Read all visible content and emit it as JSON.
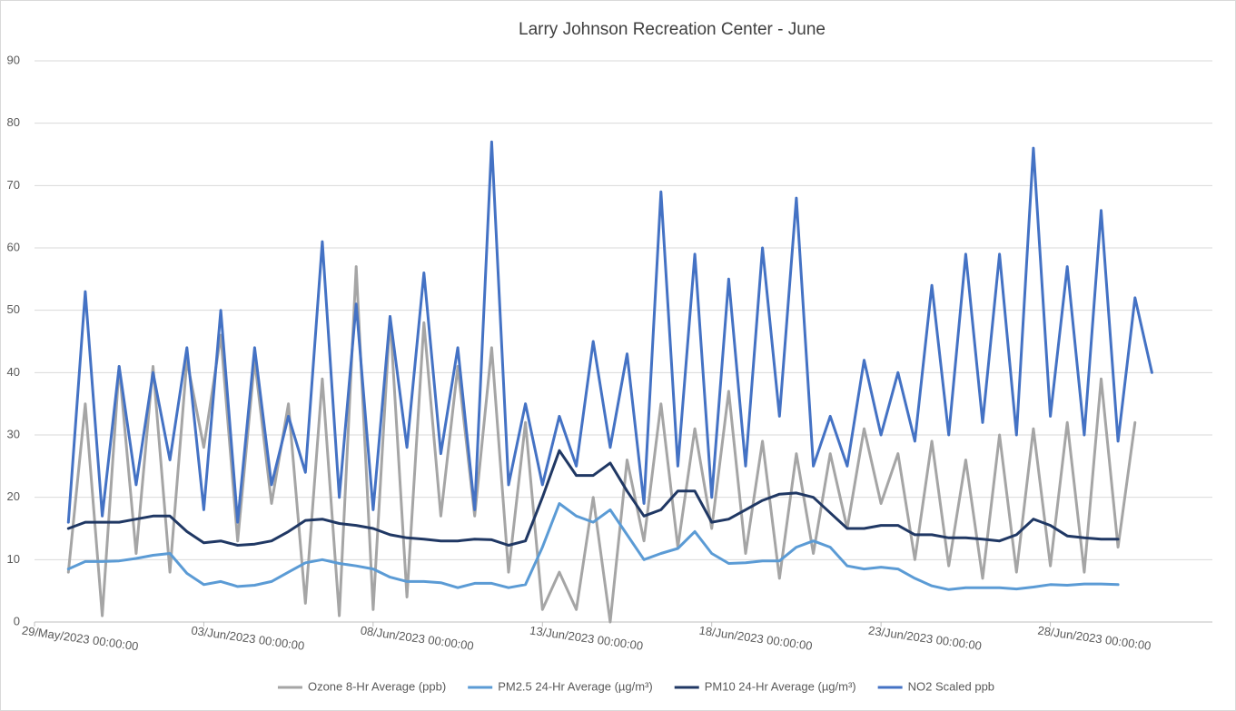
{
  "chart_data": {
    "type": "line",
    "title": "Larry Johnson Recreation Center - June",
    "x": [
      "30/May/2023 00:00:00",
      "30/May/2023 12:00:00",
      "31/May/2023 00:00:00",
      "31/May/2023 12:00:00",
      "01/Jun/2023 00:00:00",
      "01/Jun/2023 12:00:00",
      "02/Jun/2023 00:00:00",
      "02/Jun/2023 12:00:00",
      "03/Jun/2023 00:00:00",
      "03/Jun/2023 12:00:00",
      "04/Jun/2023 00:00:00",
      "04/Jun/2023 12:00:00",
      "05/Jun/2023 00:00:00",
      "05/Jun/2023 12:00:00",
      "06/Jun/2023 00:00:00",
      "06/Jun/2023 12:00:00",
      "07/Jun/2023 00:00:00",
      "07/Jun/2023 12:00:00",
      "08/Jun/2023 00:00:00",
      "08/Jun/2023 12:00:00",
      "09/Jun/2023 00:00:00",
      "09/Jun/2023 12:00:00",
      "10/Jun/2023 00:00:00",
      "10/Jun/2023 12:00:00",
      "11/Jun/2023 00:00:00",
      "11/Jun/2023 12:00:00",
      "12/Jun/2023 00:00:00",
      "12/Jun/2023 12:00:00",
      "13/Jun/2023 00:00:00",
      "13/Jun/2023 12:00:00",
      "14/Jun/2023 00:00:00",
      "14/Jun/2023 12:00:00",
      "15/Jun/2023 00:00:00",
      "15/Jun/2023 12:00:00",
      "16/Jun/2023 00:00:00",
      "16/Jun/2023 12:00:00",
      "17/Jun/2023 00:00:00",
      "17/Jun/2023 12:00:00",
      "18/Jun/2023 00:00:00",
      "18/Jun/2023 12:00:00",
      "19/Jun/2023 00:00:00",
      "19/Jun/2023 12:00:00",
      "20/Jun/2023 00:00:00",
      "20/Jun/2023 12:00:00",
      "21/Jun/2023 00:00:00",
      "21/Jun/2023 12:00:00",
      "22/Jun/2023 00:00:00",
      "22/Jun/2023 12:00:00",
      "23/Jun/2023 00:00:00",
      "23/Jun/2023 12:00:00",
      "24/Jun/2023 00:00:00",
      "24/Jun/2023 12:00:00",
      "25/Jun/2023 00:00:00",
      "25/Jun/2023 12:00:00",
      "26/Jun/2023 00:00:00",
      "26/Jun/2023 12:00:00",
      "27/Jun/2023 00:00:00",
      "27/Jun/2023 12:00:00",
      "28/Jun/2023 00:00:00",
      "28/Jun/2023 12:00:00",
      "29/Jun/2023 00:00:00",
      "29/Jun/2023 12:00:00",
      "30/Jun/2023 00:00:00",
      "30/Jun/2023 12:00:00",
      "01/Jul/2023 00:00:00"
    ],
    "series": [
      {
        "name": "Ozone 8-Hr Average (ppb)",
        "color": "#a5a5a5",
        "values": [
          8,
          35,
          1,
          41,
          11,
          41,
          8,
          42,
          28,
          46,
          13,
          42,
          19,
          35,
          3,
          39,
          1,
          57,
          2,
          49,
          4,
          48,
          17,
          41,
          17,
          44,
          8,
          32,
          2,
          8,
          2,
          20,
          0,
          26,
          13,
          35,
          12,
          31,
          15,
          37,
          11,
          29,
          7,
          27,
          11,
          27,
          15,
          31,
          19,
          27,
          10,
          29,
          9,
          26,
          7,
          30,
          8,
          31,
          9,
          32,
          8,
          39,
          12,
          32,
          null
        ]
      },
      {
        "name": "PM2.5 24-Hr Average (µg/m³)",
        "color": "#5b9bd5",
        "values": [
          8.5,
          9.7,
          9.7,
          9.8,
          10.2,
          10.7,
          11,
          7.8,
          6,
          6.5,
          5.7,
          5.9,
          6.5,
          8,
          9.5,
          10,
          9.4,
          9,
          8.5,
          7.2,
          6.5,
          6.5,
          6.3,
          5.5,
          6.2,
          6.2,
          5.5,
          6,
          12,
          19,
          17,
          16,
          18,
          14,
          10,
          11,
          11.8,
          14.5,
          11,
          9.4,
          9.5,
          9.8,
          9.8,
          12,
          13,
          12,
          9,
          8.5,
          8.8,
          8.5,
          7,
          5.8,
          5.2,
          5.5,
          5.5,
          5.5,
          5.3,
          5.6,
          6,
          5.9,
          6.1,
          6.1,
          6,
          null,
          null
        ]
      },
      {
        "name": "PM10 24-Hr Average (µg/m³)",
        "color": "#203864",
        "values": [
          15,
          16,
          16,
          16,
          16.5,
          17,
          17,
          14.5,
          12.7,
          13,
          12.3,
          12.5,
          13,
          14.5,
          16.3,
          16.5,
          15.8,
          15.5,
          15,
          14,
          13.5,
          13.3,
          13,
          13,
          13.3,
          13.2,
          12.3,
          13,
          20,
          27.5,
          23.5,
          23.5,
          25.5,
          21,
          17,
          18,
          21,
          21,
          16,
          16.5,
          18,
          19.5,
          20.5,
          20.7,
          20,
          17.5,
          15,
          15,
          15.5,
          15.5,
          14,
          14,
          13.5,
          13.5,
          13.3,
          13,
          14,
          16.5,
          15.5,
          13.8,
          13.5,
          13.3,
          13.3,
          null,
          null
        ]
      },
      {
        "name": "NO2 Scaled ppb",
        "color": "#4472c4",
        "values": [
          16,
          53,
          17,
          41,
          22,
          40,
          26,
          44,
          18,
          50,
          16,
          44,
          22,
          33,
          24,
          61,
          20,
          51,
          18,
          49,
          28,
          56,
          27,
          44,
          18,
          77,
          22,
          35,
          22,
          33,
          25,
          45,
          28,
          43,
          19,
          69,
          25,
          59,
          20,
          55,
          25,
          60,
          33,
          68,
          25,
          33,
          25,
          42,
          30,
          40,
          29,
          54,
          30,
          59,
          32,
          59,
          30,
          76,
          33,
          57,
          30,
          66,
          29,
          52,
          40
        ]
      }
    ],
    "xlim": [
      "29/May/2023 00:00:00",
      "03/Jul/2023 00:00:00"
    ],
    "xticks": [
      "29/May/2023 00:00:00",
      "03/Jun/2023 00:00:00",
      "08/Jun/2023 00:00:00",
      "13/Jun/2023 00:00:00",
      "18/Jun/2023 00:00:00",
      "23/Jun/2023 00:00:00",
      "28/Jun/2023 00:00:00"
    ],
    "ylim": [
      0,
      90
    ],
    "yticks": [
      0,
      10,
      20,
      30,
      40,
      50,
      60,
      70,
      80,
      90
    ],
    "grid": true,
    "legend": "bottom"
  }
}
